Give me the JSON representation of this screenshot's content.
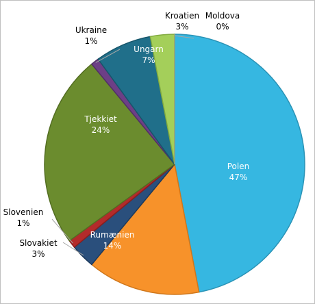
{
  "chart_data": {
    "type": "pie",
    "title": "",
    "legend": "none",
    "slices": [
      {
        "name": "Polen",
        "value": 47,
        "label": "47%",
        "color": "#36b7e1",
        "edge": "#2a93b6",
        "label_inside": true
      },
      {
        "name": "Rumænien",
        "value": 14,
        "label": "14%",
        "color": "#f7922a",
        "edge": "#d0771b",
        "label_inside": true
      },
      {
        "name": "Slovakiet",
        "value": 3,
        "label": "3%",
        "color": "#2a4f7c",
        "edge": "#1d3a5c",
        "label_inside": false
      },
      {
        "name": "Slovenien",
        "value": 1,
        "label": "1%",
        "color": "#b32b2b",
        "edge": "#8a1e1e",
        "label_inside": false
      },
      {
        "name": "Tjekkiet",
        "value": 24,
        "label": "24%",
        "color": "#6b8c2e",
        "edge": "#536e22",
        "label_inside": true
      },
      {
        "name": "Ukraine",
        "value": 1,
        "label": "1%",
        "color": "#6d3f86",
        "edge": "#523066",
        "label_inside": false
      },
      {
        "name": "Ungarn",
        "value": 7,
        "label": "7%",
        "color": "#206f8a",
        "edge": "#17566b",
        "label_inside": true
      },
      {
        "name": "Kroatien",
        "value": 3,
        "label": "3%",
        "color": "#a4cf5a",
        "edge": "#82ab40",
        "label_inside": false
      },
      {
        "name": "Moldova",
        "value": 0,
        "label": "0%",
        "color": "#c8c8c8",
        "edge": "#9a9a9a",
        "label_inside": false
      }
    ]
  }
}
